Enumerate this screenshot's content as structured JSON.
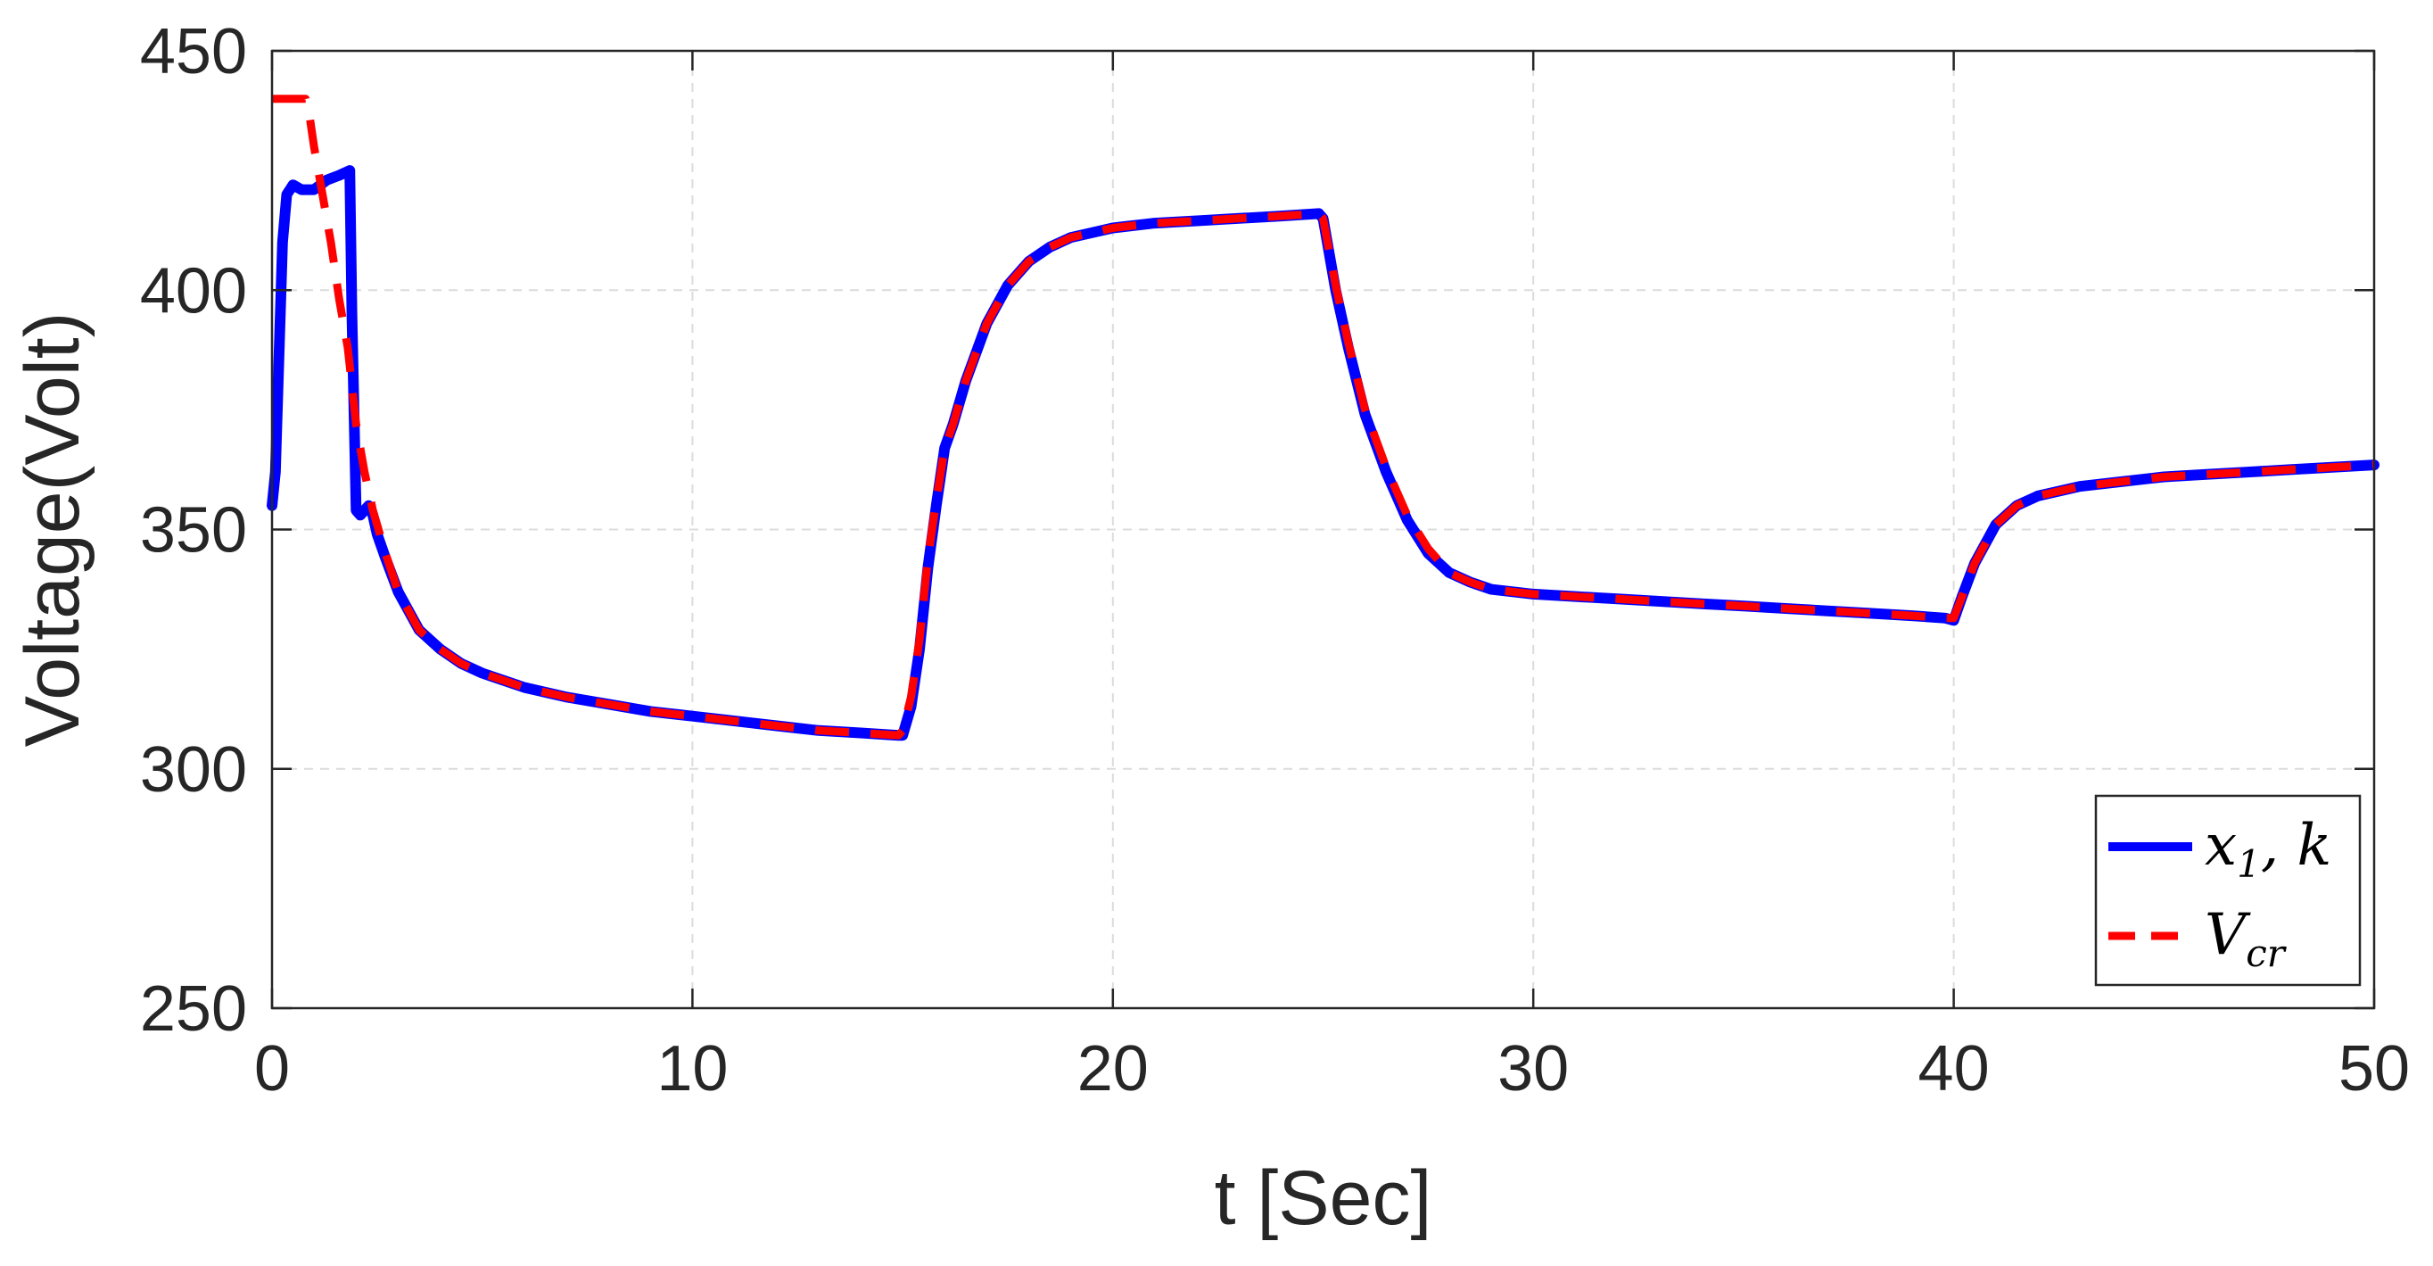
{
  "chart_data": {
    "type": "line",
    "title": "",
    "xlabel": "t [Sec]",
    "ylabel": "Voltage(Volt)",
    "xlim": [
      0,
      50
    ],
    "ylim": [
      250,
      450
    ],
    "grid": true,
    "legend_position": "bottom-right",
    "x_ticks": [
      "0",
      "10",
      "20",
      "30",
      "40",
      "50"
    ],
    "y_ticks": [
      "250",
      "300",
      "350",
      "400",
      "450"
    ],
    "series": [
      {
        "name": "x_1, k",
        "legend_main": "x",
        "legend_sub": "1",
        "legend_rest": ", k",
        "color": "#0000FF",
        "style": "solid",
        "x": [
          0,
          0.08,
          0.15,
          0.25,
          0.35,
          0.5,
          0.7,
          1.0,
          1.3,
          1.6,
          1.85,
          1.9,
          2.0,
          2.1,
          2.2,
          2.3,
          2.4,
          2.5,
          2.7,
          3.0,
          3.5,
          4.0,
          4.5,
          5.0,
          6.0,
          7.0,
          8.0,
          9.0,
          10.0,
          11.0,
          12.0,
          13.0,
          14.0,
          14.9,
          15.0,
          15.2,
          15.4,
          15.6,
          15.8,
          16.0,
          16.2,
          16.5,
          17.0,
          17.5,
          18.0,
          18.5,
          19.0,
          20.0,
          21.0,
          22.0,
          23.0,
          24.0,
          24.9,
          25.0,
          25.3,
          25.6,
          26.0,
          26.5,
          27.0,
          27.5,
          28.0,
          28.5,
          29.0,
          30.0,
          31.0,
          32.0,
          33.0,
          34.0,
          35.0,
          36.0,
          37.0,
          38.0,
          39.0,
          39.8,
          40.0,
          40.2,
          40.5,
          41.0,
          41.5,
          42.0,
          43.0,
          44.0,
          45.0,
          46.0,
          47.0,
          48.0,
          49.0,
          50.0
        ],
        "y": [
          355,
          362,
          382,
          410,
          420,
          422,
          421,
          421,
          423,
          424,
          425,
          395,
          354,
          353,
          354,
          355,
          353,
          349,
          344,
          337,
          329,
          325,
          322,
          320,
          317,
          315,
          313.5,
          312,
          311,
          310,
          309,
          308,
          307.5,
          307,
          307,
          313,
          325,
          342,
          355,
          367,
          372,
          381,
          393,
          401,
          406,
          409,
          411,
          413,
          414,
          414.5,
          415,
          415.5,
          416,
          415,
          400,
          388,
          374,
          362,
          352,
          345,
          341,
          339,
          337.5,
          336.5,
          336,
          335.5,
          335,
          334.5,
          334,
          333.5,
          333,
          332.5,
          332,
          331.5,
          331,
          336,
          343,
          351,
          355,
          357,
          359,
          360,
          361,
          361.5,
          362,
          362.5,
          363,
          363.5
        ]
      },
      {
        "name": "V_cr",
        "legend_main": "V",
        "legend_sub": "cr",
        "legend_rest": "",
        "color": "#FF0000",
        "style": "dashed",
        "x": [
          0,
          0.4,
          0.8,
          0.9,
          1.0,
          1.2,
          1.4,
          1.6,
          1.8,
          2.0,
          2.2,
          2.4,
          2.7,
          3.0,
          3.5,
          4.0,
          4.5,
          5.0,
          6.0,
          7.0,
          8.0,
          9.0,
          10.0,
          11.0,
          12.0,
          13.0,
          14.0,
          14.9,
          15.0,
          15.2,
          15.4,
          15.6,
          15.8,
          16.0,
          16.2,
          16.5,
          17.0,
          17.5,
          18.0,
          18.5,
          19.0,
          20.0,
          21.0,
          22.0,
          23.0,
          24.0,
          24.9,
          25.0,
          25.3,
          25.6,
          26.0,
          26.5,
          27.0,
          27.5,
          28.0,
          28.5,
          29.0,
          30.0,
          31.0,
          32.0,
          33.0,
          34.0,
          35.0,
          36.0,
          37.0,
          38.0,
          39.0,
          39.8,
          40.0,
          40.2,
          40.5,
          41.0,
          41.5,
          42.0,
          43.0,
          44.0,
          45.0,
          46.0,
          47.0,
          48.0,
          49.0,
          50.0
        ],
        "y": [
          440,
          440,
          440,
          436,
          430,
          420,
          410,
          398,
          388,
          372,
          362,
          354,
          345,
          337,
          329,
          325,
          322,
          320,
          317,
          315,
          313.5,
          312,
          311,
          310,
          309,
          308,
          307.5,
          307,
          308,
          315,
          327,
          344,
          356,
          367,
          372,
          381,
          393,
          401,
          406,
          409,
          411,
          413,
          414,
          414.5,
          415,
          415.5,
          416,
          415,
          401,
          389,
          375,
          363,
          353,
          346,
          341,
          339,
          337.5,
          336.5,
          336,
          335.5,
          335,
          334.5,
          334,
          333.5,
          333,
          332.5,
          332,
          331.5,
          331.5,
          336,
          343,
          351,
          355,
          357,
          359,
          360,
          361,
          361.5,
          362,
          362.5,
          363,
          363.5
        ]
      }
    ]
  }
}
